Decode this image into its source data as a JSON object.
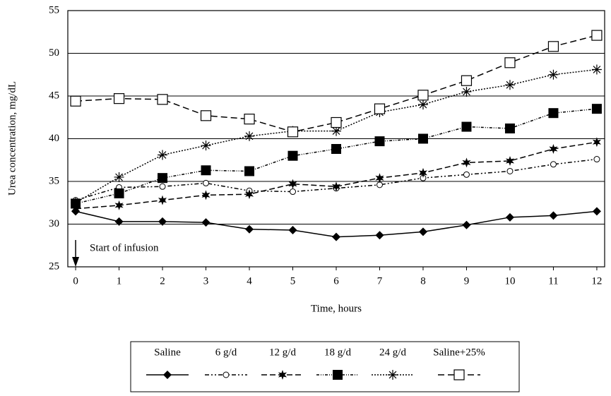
{
  "chart_data": {
    "type": "line",
    "xlabel": "Time, hours",
    "ylabel": "Urea concentration, mg/dL",
    "annotation": "Start of infusion",
    "x": [
      0,
      1,
      2,
      3,
      4,
      5,
      6,
      7,
      8,
      9,
      10,
      11,
      12
    ],
    "xlim": [
      -0.18,
      12.18
    ],
    "xticks": [
      0,
      1,
      2,
      3,
      4,
      5,
      6,
      7,
      8,
      9,
      10,
      11,
      12
    ],
    "ylim": [
      25,
      55
    ],
    "yticks": [
      25,
      30,
      35,
      40,
      45,
      50,
      55
    ],
    "grid": true,
    "legend": "bottom",
    "series": [
      {
        "name": "Saline",
        "color": "#000000",
        "marker": "diamond",
        "dash": "solid",
        "values": [
          31.5,
          30.3,
          30.3,
          30.2,
          29.4,
          29.3,
          28.5,
          28.7,
          29.1,
          29.9,
          30.8,
          31.0,
          31.5
        ]
      },
      {
        "name": "6 g/d",
        "color": "#000000",
        "marker": "circle",
        "dash": "dash-dot-dot",
        "values": [
          32.8,
          34.3,
          34.4,
          34.8,
          33.9,
          33.8,
          34.2,
          34.6,
          35.4,
          35.8,
          36.2,
          37.0,
          37.6
        ]
      },
      {
        "name": "12 g/d",
        "color": "#000000",
        "marker": "star",
        "dash": "dash",
        "values": [
          31.8,
          32.2,
          32.8,
          33.4,
          33.5,
          34.7,
          34.4,
          35.4,
          36.0,
          37.2,
          37.4,
          38.8,
          39.6
        ]
      },
      {
        "name": "18 g/d",
        "color": "#000000",
        "marker": "square",
        "dash": "dash-dot",
        "values": [
          32.4,
          33.6,
          35.4,
          36.3,
          36.2,
          38.0,
          38.8,
          39.7,
          40.0,
          41.4,
          41.2,
          43.0,
          43.5
        ]
      },
      {
        "name": "24 g/d",
        "color": "#000000",
        "marker": "asterisk",
        "dash": "dot",
        "values": [
          32.5,
          35.5,
          38.1,
          39.2,
          40.3,
          40.9,
          40.9,
          43.1,
          44.0,
          45.5,
          46.3,
          47.5,
          48.1
        ]
      },
      {
        "name": "Saline+25%",
        "color": "#000000",
        "marker": "open-square",
        "dash": "long-dash",
        "values": [
          44.4,
          44.7,
          44.6,
          42.7,
          42.3,
          40.8,
          41.9,
          43.5,
          45.1,
          46.8,
          48.9,
          50.8,
          52.1
        ]
      }
    ]
  }
}
